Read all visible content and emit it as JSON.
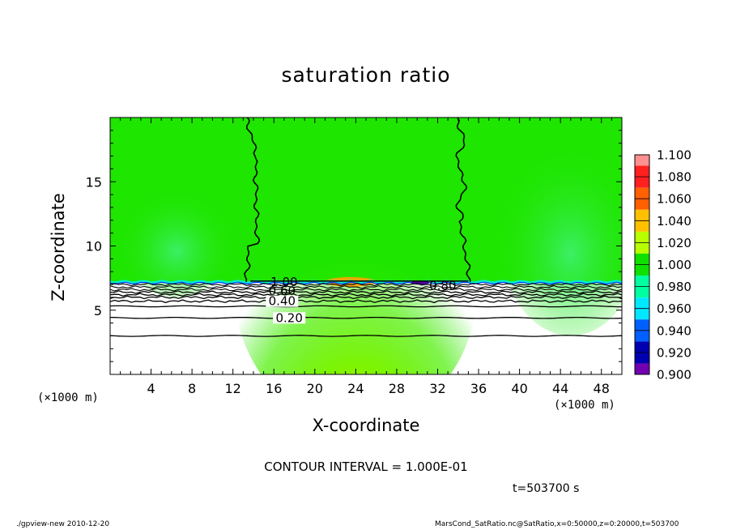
{
  "chart_data": {
    "type": "heatmap",
    "title": "saturation ratio",
    "xlabel": "X-coordinate",
    "ylabel": "Z-coordinate",
    "x_unit_label": "(×1000 m)",
    "y_unit_label": "",
    "xlim": [
      0,
      50
    ],
    "ylim": [
      0,
      20
    ],
    "x_ticks": [
      4,
      8,
      12,
      16,
      20,
      24,
      28,
      32,
      36,
      40,
      44,
      48
    ],
    "y_ticks": [
      5,
      10,
      15
    ],
    "grid": false,
    "colorbar": {
      "levels": [
        "1.100",
        "1.080",
        "1.060",
        "1.040",
        "1.020",
        "1.000",
        "0.980",
        "0.960",
        "0.940",
        "0.920",
        "0.900"
      ],
      "colors": [
        "#ff9090",
        "#ff2020",
        "#ff6000",
        "#ffc000",
        "#b8ff00",
        "#10e000",
        "#00ffa0",
        "#00e8ff",
        "#0060ff",
        "#0000b0",
        "#7000b0"
      ]
    },
    "cloud_layer_top_z": 7.2,
    "contour_labels": [
      {
        "text": "1.00",
        "x": 17.0,
        "z": 7.2
      },
      {
        "text": "0.60",
        "x": 16.8,
        "z": 6.5
      },
      {
        "text": "0.40",
        "x": 16.8,
        "z": 5.7
      },
      {
        "text": "0.20",
        "x": 17.5,
        "z": 4.4
      },
      {
        "text": "0.80",
        "x": 32.5,
        "z": 6.9
      }
    ],
    "contour_lines_below_cloud_z": [
      7.0,
      6.8,
      6.6,
      6.4,
      6.2,
      6.0,
      5.7,
      5.3,
      4.4,
      3.0
    ]
  },
  "labels": {
    "contour_interval": "CONTOUR INTERVAL = 1.000E-01",
    "time": "t=503700 s",
    "footer_left": "./gpview-new  2010-12-20",
    "footer_right": "MarsCond_SatRatio.nc@SatRatio,x=0:50000,z=0:20000,t=503700"
  },
  "colors": {
    "field_green": "#1ee600",
    "field_light": "#5cf000",
    "field_cyan": "#00f0c8"
  }
}
